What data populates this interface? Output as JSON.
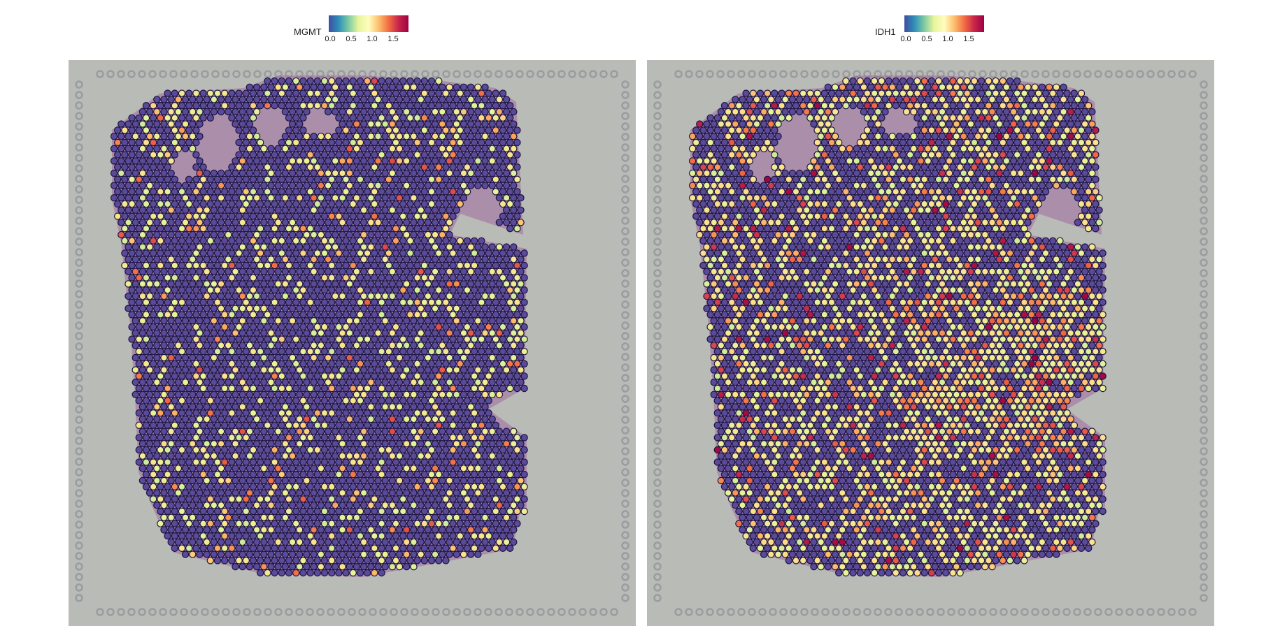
{
  "panels": [
    {
      "gene": "MGMT",
      "ticks": [
        "0.0",
        "0.5",
        "1.0",
        "1.5"
      ],
      "tick_values": [
        0.0,
        0.5,
        1.0,
        1.5
      ],
      "max_value": 1.9,
      "palette": "Spectral (reversed)"
    },
    {
      "gene": "IDH1",
      "ticks": [
        "0.0",
        "0.5",
        "1.0",
        "1.5"
      ],
      "tick_values": [
        0.0,
        0.5,
        1.0,
        1.5
      ],
      "max_value": 1.9,
      "palette": "Spectral (reversed)"
    }
  ],
  "colors": {
    "low": "#5a4a9a",
    "mid": "#d8f0a0",
    "high": "#9e0142",
    "background_tissue": "#b9bbb6",
    "spot_outline": "#1c1440"
  }
}
